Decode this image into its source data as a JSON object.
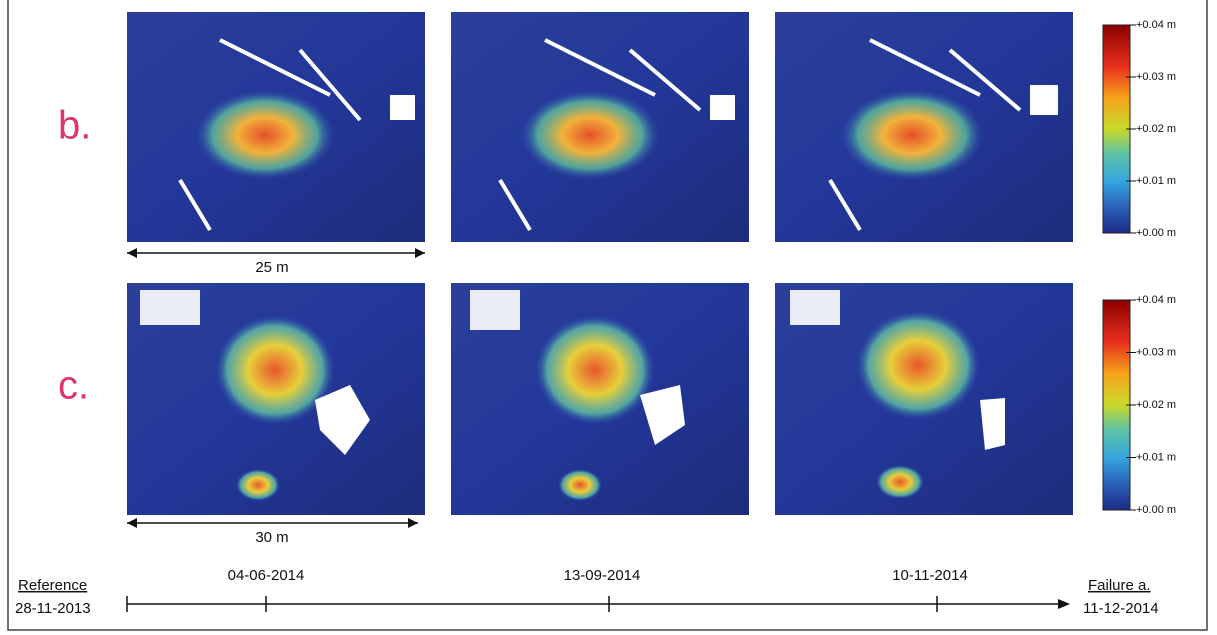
{
  "rows": [
    {
      "label": "b.",
      "scale": "25 m"
    },
    {
      "label": "c.",
      "scale": "30 m"
    }
  ],
  "colorbar_labels": [
    "+0.04 m",
    "+0.03 m",
    "+0.02 m",
    "+0.01 m",
    "+0.00 m"
  ],
  "timeline": {
    "start_label": "Reference",
    "start_date": "28-11-2013",
    "dates": [
      "04-06-2014",
      "13-09-2014",
      "10-11-2014"
    ],
    "end_label": "Failure a.",
    "end_date": "11-12-2014"
  }
}
